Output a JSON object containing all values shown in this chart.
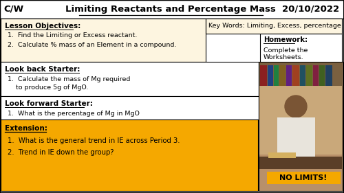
{
  "title_cw": "C/W",
  "title_main": "Limiting Reactants and Percentage Mass",
  "title_date": "20/10/2022",
  "bg_color": "#ffffff",
  "lesson_obj_bg": "#fdf5e0",
  "extension_bg": "#f5a800",
  "key_words_bg": "#fdf5e0",
  "lesson_objectives_title": "Lesson Objectives:",
  "lesson_objectives": [
    "Find the Limiting or Excess reactant.",
    "Calculate % mass of an Element in a compound."
  ],
  "key_words": "Key Words: Limiting, Excess, percentage",
  "homework_title": "Homework:",
  "homework_line1": "Complete the",
  "homework_line2": "Worksheets.",
  "look_back_title": "Look back Starter:",
  "look_back_line1": "Calculate the mass of Mg required",
  "look_back_line2": "    to produce 5g of MgO.",
  "look_forward_title": "Look forward Starter:",
  "look_forward_line1": "What is the percentage of Mg in MgO",
  "extension_title": "Extension:",
  "extension": [
    "What is the general trend in IE across Period 3.",
    "Trend in IE down the group?"
  ],
  "no_limits_text": "NO LIMITS!",
  "img_bg": "#b8906a",
  "img_bookshelf": "#8b6b3d",
  "img_head": "#7a5535",
  "img_shirt": "#e8e4dc",
  "img_desk": "#5a3e28",
  "img_nolimits_bg": "#f5a800"
}
